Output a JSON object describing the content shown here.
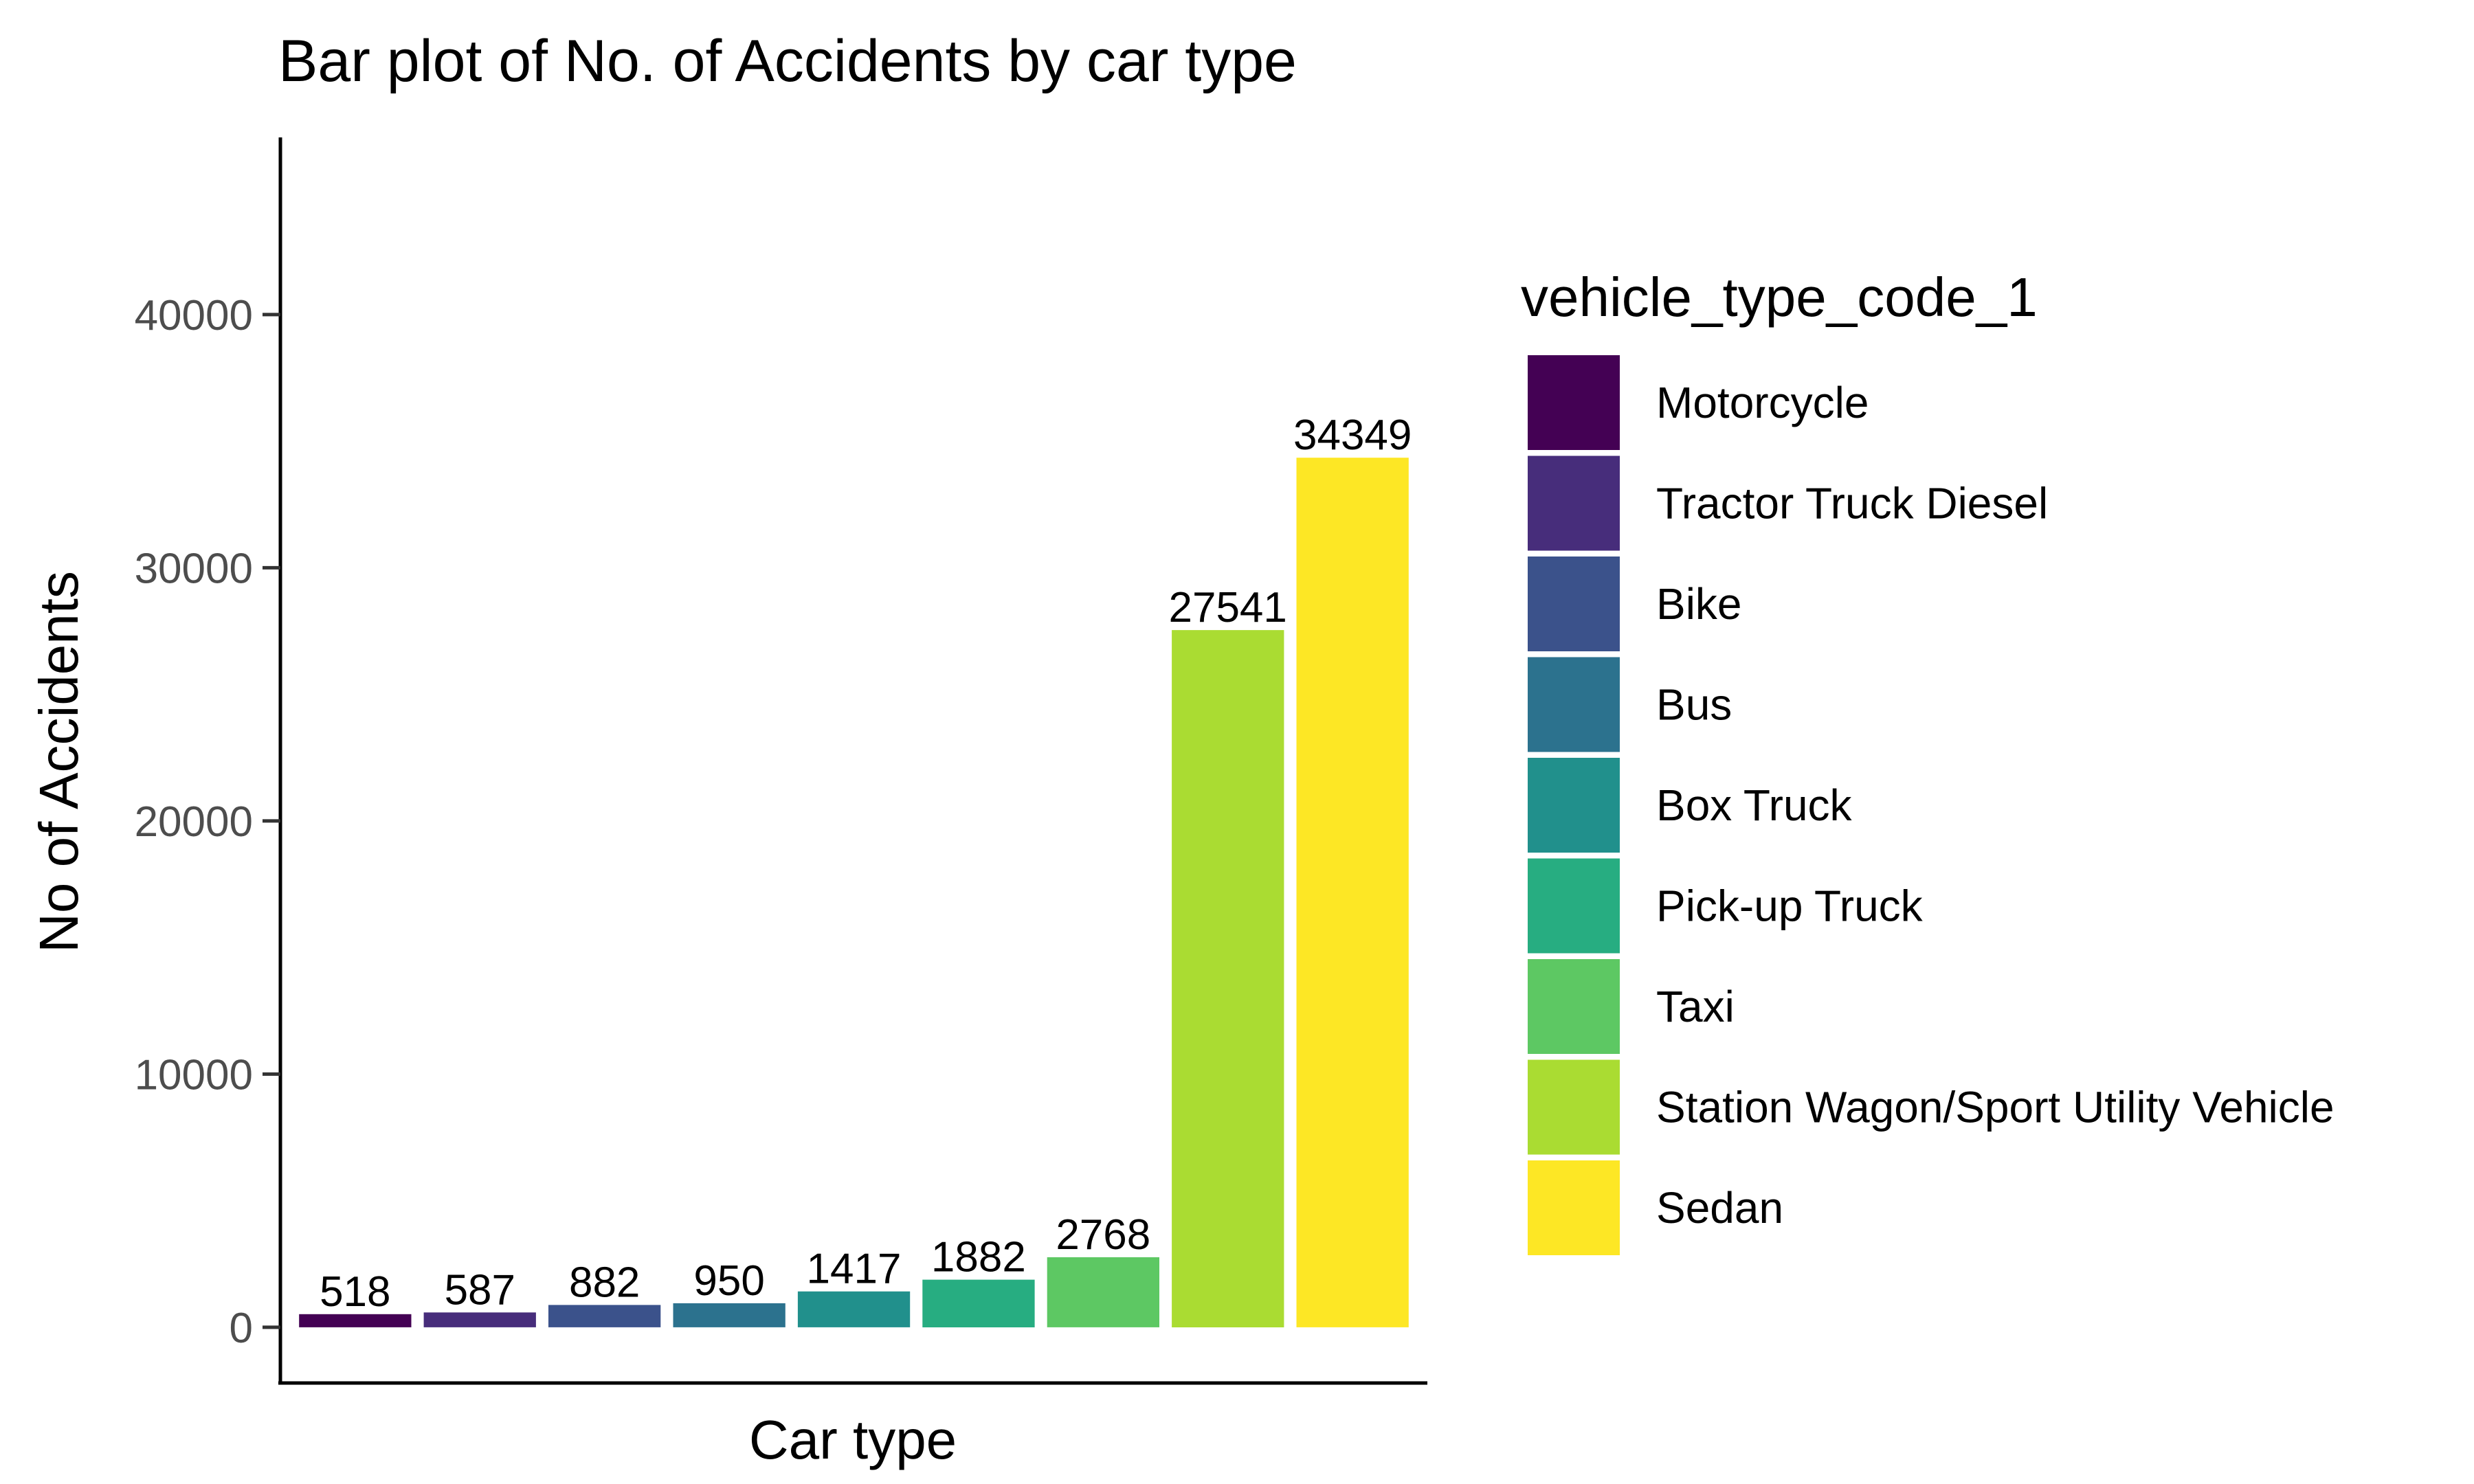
{
  "chart_data": {
    "type": "bar",
    "title": "Bar plot of No. of Accidents by car type",
    "xlabel": "Car type",
    "ylabel": "No of Accidents",
    "ylim": [
      -2200,
      47000
    ],
    "yticks": [
      0,
      10000,
      20000,
      30000,
      40000
    ],
    "ytick_labels": [
      "0",
      "10000",
      "20000",
      "30000",
      "40000"
    ],
    "grid": false,
    "legend_title": "vehicle_type_code_1",
    "legend_position": "right",
    "categories": [
      "Motorcycle",
      "Tractor Truck Diesel",
      "Bike",
      "Bus",
      "Box Truck",
      "Pick-up Truck",
      "Taxi",
      "Station Wagon/Sport Utility Vehicle",
      "Sedan"
    ],
    "values": [
      518,
      587,
      882,
      950,
      1417,
      1882,
      2768,
      27541,
      34349
    ],
    "value_labels": [
      "518",
      "587",
      "882",
      "950",
      "1417",
      "1882",
      "2768",
      "27541",
      "34349"
    ],
    "colors": [
      "#440154",
      "#472D7B",
      "#3B528B",
      "#2C728E",
      "#21908C",
      "#27AD81",
      "#5DC863",
      "#AADC32",
      "#FDE725"
    ]
  }
}
